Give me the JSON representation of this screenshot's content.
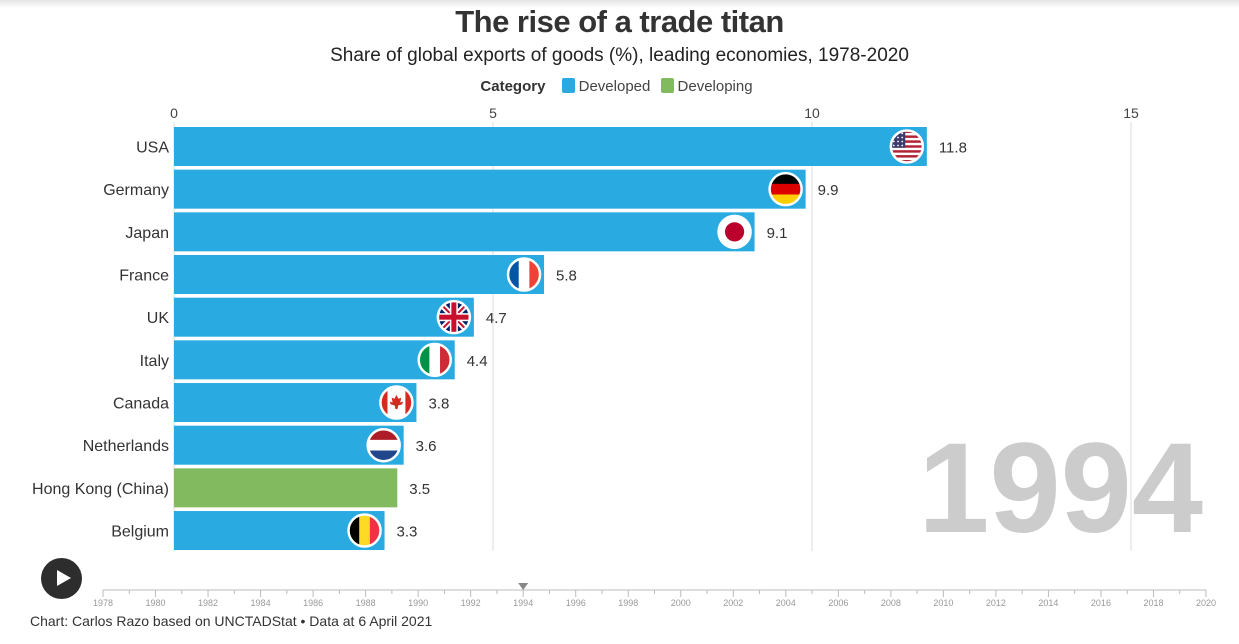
{
  "title": "The rise of a trade titan",
  "subtitle": "Share of global exports of goods (%), leading economies, 1978-2020",
  "legend": {
    "title": "Category",
    "items": [
      {
        "label": "Developed",
        "color": "#29aae1"
      },
      {
        "label": "Developing",
        "color": "#82bb5f"
      }
    ]
  },
  "current_year": "1994",
  "footer": "Chart: Carlos Razo based on UNCTADStat • Data at 6 April 2021",
  "timeline": {
    "labels": [
      "1978",
      "1980",
      "1982",
      "1984",
      "1986",
      "1988",
      "1990",
      "1992",
      "1994",
      "1996",
      "1998",
      "2000",
      "2002",
      "2004",
      "2006",
      "2008",
      "2010",
      "2012",
      "2014",
      "2016",
      "2018",
      "2020"
    ],
    "start": 1978,
    "end": 2020,
    "current": 1994
  },
  "chart_data": {
    "type": "bar",
    "orientation": "horizontal",
    "xlim": [
      0,
      15
    ],
    "xticks": [
      0,
      5,
      10,
      15
    ],
    "grid": true,
    "categories": [
      "USA",
      "Germany",
      "Japan",
      "France",
      "UK",
      "Italy",
      "Canada",
      "Netherlands",
      "Hong Kong (China)",
      "Belgium"
    ],
    "values": [
      11.8,
      9.9,
      9.1,
      5.8,
      4.7,
      4.4,
      3.8,
      3.6,
      3.5,
      3.3
    ],
    "value_labels": [
      "11.8",
      "9.9",
      "9.1",
      "5.8",
      "4.7",
      "4.4",
      "3.8",
      "3.6",
      "3.5",
      "3.3"
    ],
    "category_group": [
      "Developed",
      "Developed",
      "Developed",
      "Developed",
      "Developed",
      "Developed",
      "Developed",
      "Developed",
      "Developing",
      "Developed"
    ],
    "flags": [
      "us-flag-icon",
      "germany-flag-icon",
      "japan-flag-icon",
      "france-flag-icon",
      "uk-flag-icon",
      "italy-flag-icon",
      "canada-flag-icon",
      "netherlands-flag-icon",
      "",
      "belgium-flag-icon"
    ]
  }
}
